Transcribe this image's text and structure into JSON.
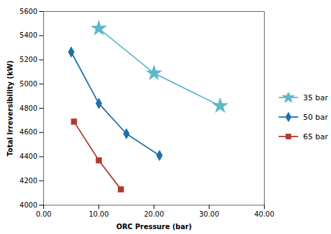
{
  "chart_data": {
    "type": "line",
    "xlabel": "ORC Pressure (bar)",
    "ylabel": "Total Irreversibility (kW)",
    "series": [
      {
        "name": "35 bar",
        "color": "#5BB8C8",
        "marker": "star",
        "x": [
          10,
          20,
          32
        ],
        "values": [
          5460,
          5090,
          4820
        ]
      },
      {
        "name": "50 bar",
        "color": "#1F6FA8",
        "marker": "diamond",
        "x": [
          5,
          10,
          15,
          21
        ],
        "values": [
          5265,
          4840,
          4590,
          4410
        ]
      },
      {
        "name": "65 bar",
        "color": "#B03A2E",
        "marker": "square",
        "x": [
          5.5,
          10,
          14
        ],
        "values": [
          4690,
          4370,
          4130
        ]
      }
    ],
    "xlim": [
      0.0,
      40.0
    ],
    "ylim": [
      4000,
      5600
    ],
    "xticks": [
      {
        "value": 0,
        "label": "0.00"
      },
      {
        "value": 10,
        "label": "10.00"
      },
      {
        "value": 20,
        "label": "20.00"
      },
      {
        "value": 30,
        "label": "30.00"
      },
      {
        "value": 40,
        "label": "40.00"
      }
    ],
    "yticks": [
      4000,
      4200,
      4400,
      4600,
      4800,
      5000,
      5200,
      5400,
      5600
    ],
    "grid": false,
    "legend": "right"
  }
}
